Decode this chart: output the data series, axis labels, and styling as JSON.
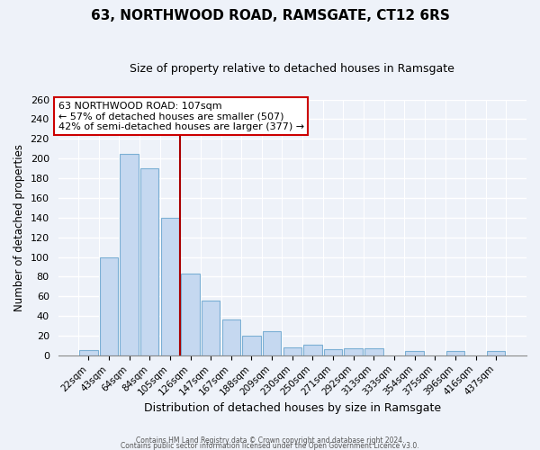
{
  "title": "63, NORTHWOOD ROAD, RAMSGATE, CT12 6RS",
  "subtitle": "Size of property relative to detached houses in Ramsgate",
  "xlabel": "Distribution of detached houses by size in Ramsgate",
  "ylabel": "Number of detached properties",
  "bar_color": "#c5d8f0",
  "bar_edge_color": "#7bafd4",
  "categories": [
    "22sqm",
    "43sqm",
    "64sqm",
    "84sqm",
    "105sqm",
    "126sqm",
    "147sqm",
    "167sqm",
    "188sqm",
    "209sqm",
    "230sqm",
    "250sqm",
    "271sqm",
    "292sqm",
    "313sqm",
    "333sqm",
    "354sqm",
    "375sqm",
    "396sqm",
    "416sqm",
    "437sqm"
  ],
  "values": [
    5,
    100,
    205,
    190,
    140,
    83,
    56,
    36,
    20,
    25,
    8,
    11,
    6,
    7,
    7,
    0,
    4,
    0,
    4,
    0,
    4
  ],
  "ylim": [
    0,
    260
  ],
  "yticks": [
    0,
    20,
    40,
    60,
    80,
    100,
    120,
    140,
    160,
    180,
    200,
    220,
    240,
    260
  ],
  "vline_idx": 4,
  "vline_color": "#aa0000",
  "annotation_line1": "63 NORTHWOOD ROAD: 107sqm",
  "annotation_line2": "← 57% of detached houses are smaller (507)",
  "annotation_line3": "42% of semi-detached houses are larger (377) →",
  "annotation_box_color": "white",
  "annotation_box_edge": "#cc0000",
  "footer_line1": "Contains HM Land Registry data © Crown copyright and database right 2024.",
  "footer_line2": "Contains public sector information licensed under the Open Government Licence v3.0.",
  "background_color": "#eef2f9"
}
